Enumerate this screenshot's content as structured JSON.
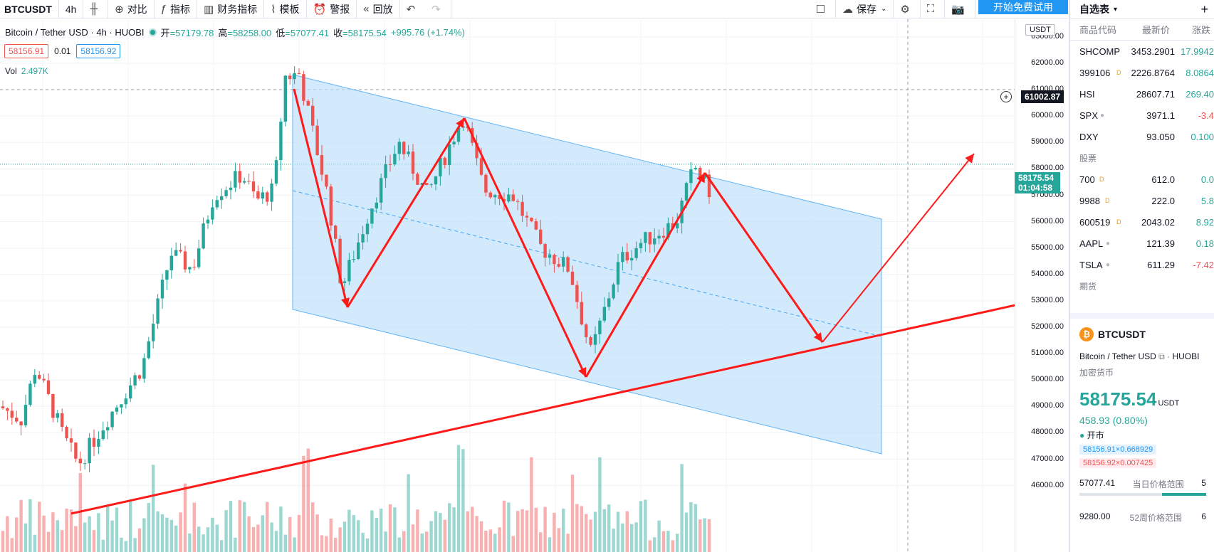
{
  "toolbar": {
    "symbol": "BTCUSDT",
    "interval": "4h",
    "compare": "对比",
    "indicators": "指标",
    "financials": "财务指标",
    "templates": "模板",
    "alert": "警报",
    "replay": "回放",
    "save": "保存",
    "trial": "开始免费试用"
  },
  "legend": {
    "title": "Bitcoin / Tether USD · 4h · HUOBI",
    "open_k": "开",
    "open_v": "=57179.78",
    "high_k": "高",
    "high_v": "=58258.00",
    "low_k": "低",
    "low_v": "=57077.41",
    "close_k": "收",
    "close_v": "=58175.54",
    "change": "+995.76 (+1.74%)"
  },
  "price_boxes": {
    "sell": "58156.91",
    "spread": "0.01",
    "buy": "58156.92"
  },
  "volume": {
    "label": "Vol",
    "value": "2.497K"
  },
  "axis": {
    "currency": "USDT",
    "labels": [
      "63000.00",
      "62000.00",
      "61000.00",
      "60000.00",
      "59000.00",
      "58000.00",
      "57000.00",
      "56000.00",
      "55000.00",
      "54000.00",
      "53000.00",
      "52000.00",
      "51000.00",
      "50000.00",
      "49000.00",
      "48000.00",
      "47000.00",
      "46000.00"
    ],
    "hline_price": "61002.87",
    "current_price": "58175.54",
    "countdown": "01:04:58"
  },
  "sidebar": {
    "title": "自选表",
    "columns": [
      "商品代码",
      "最新价",
      "涨跌"
    ],
    "rows": [
      {
        "sym": "SHCOMP",
        "price": "3453.2901",
        "chg": "17.9942",
        "dir": "up",
        "mark": ""
      },
      {
        "sym": "399106",
        "price": "2226.8764",
        "chg": "8.0864",
        "dir": "up",
        "mark": "D"
      },
      {
        "sym": "HSI",
        "price": "28607.71",
        "chg": "269.40",
        "dir": "up",
        "mark": ""
      },
      {
        "sym": "SPX",
        "price": "3971.1",
        "chg": "-3.4",
        "dir": "dn",
        "mark": "●"
      },
      {
        "sym": "DXY",
        "price": "93.050",
        "chg": "0.100",
        "dir": "up",
        "mark": ""
      }
    ],
    "section_stocks": "股票",
    "stock_rows": [
      {
        "sym": "700",
        "price": "612.0",
        "chg": "0.0",
        "dir": "up",
        "mark": "D"
      },
      {
        "sym": "9988",
        "price": "222.0",
        "chg": "5.8",
        "dir": "up",
        "mark": "D"
      },
      {
        "sym": "600519",
        "price": "2043.02",
        "chg": "8.92",
        "dir": "up",
        "mark": "D"
      },
      {
        "sym": "AAPL",
        "price": "121.39",
        "chg": "0.18",
        "dir": "up",
        "mark": "●"
      },
      {
        "sym": "TSLA",
        "price": "611.29",
        "chg": "-7.42",
        "dir": "dn",
        "mark": "●"
      }
    ],
    "section_futures": "期货",
    "detail": {
      "symbol": "BTCUSDT",
      "name": "Bitcoin / Tether USD",
      "exchange": "HUOBI",
      "category": "加密货币",
      "price": "58175.54",
      "currency": "USDT",
      "change": "458.93 (0.80%)",
      "status": "开市",
      "bid": "58156.91×0.668929",
      "ask": "58156.92×0.007425",
      "day_low": "57077.41",
      "day_range_label": "当日价格范围",
      "day_high": "5",
      "w52_low": "9280.00",
      "w52_label": "52周价格范围",
      "w52_high": "6"
    }
  },
  "colors": {
    "up": "#26a69a",
    "down": "#ef5350",
    "channel": "#bbdefb",
    "arrow": "#ff0000"
  }
}
